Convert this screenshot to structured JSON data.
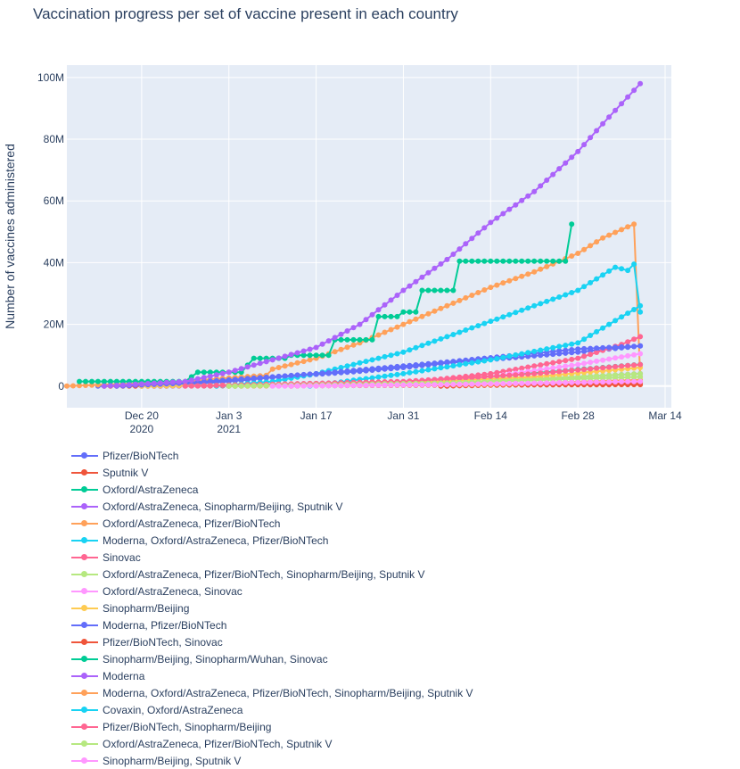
{
  "chart_data": {
    "type": "line",
    "title": "Vaccination progress per set of vaccine present in each country",
    "ylabel": "Number of vaccines administered",
    "xlabel": "",
    "x_range": [
      "2020-12-08",
      "2021-03-15"
    ],
    "ylim": [
      -7000000,
      104000000
    ],
    "y_ticks": [
      {
        "value": 0,
        "label": "0"
      },
      {
        "value": 20000000,
        "label": "20M"
      },
      {
        "value": 40000000,
        "label": "40M"
      },
      {
        "value": 60000000,
        "label": "60M"
      },
      {
        "value": 80000000,
        "label": "80M"
      },
      {
        "value": 100000000,
        "label": "100M"
      }
    ],
    "x_ticks": [
      {
        "date": "2020-12-20",
        "label": "Dec 20",
        "sublabel": "2020"
      },
      {
        "date": "2021-01-03",
        "label": "Jan 3",
        "sublabel": "2021"
      },
      {
        "date": "2021-01-17",
        "label": "Jan 17",
        "sublabel": ""
      },
      {
        "date": "2021-01-31",
        "label": "Jan 31",
        "sublabel": ""
      },
      {
        "date": "2021-02-14",
        "label": "Feb 14",
        "sublabel": ""
      },
      {
        "date": "2021-02-28",
        "label": "Feb 28",
        "sublabel": ""
      },
      {
        "date": "2021-03-14",
        "label": "Mar 14",
        "sublabel": ""
      }
    ],
    "grid": true,
    "legend_position": "bottom",
    "series": [
      {
        "name": "Pfizer/BioNTech",
        "color": "#636efa",
        "points": [
          [
            "2020-12-13",
            0
          ],
          [
            "2020-12-27",
            500000
          ],
          [
            "2021-01-03",
            1500000
          ],
          [
            "2021-01-10",
            2800000
          ],
          [
            "2021-01-17",
            3800000
          ],
          [
            "2021-01-24",
            4800000
          ],
          [
            "2021-01-31",
            6000000
          ],
          [
            "2021-02-07",
            7500000
          ],
          [
            "2021-02-14",
            8600000
          ],
          [
            "2021-02-21",
            9800000
          ],
          [
            "2021-02-28",
            11000000
          ],
          [
            "2021-03-07",
            12400000
          ],
          [
            "2021-03-10",
            13000000
          ]
        ]
      },
      {
        "name": "Sputnik V",
        "color": "#EF553B",
        "points": [
          [
            "2020-12-14",
            0
          ],
          [
            "2021-01-10",
            100000
          ],
          [
            "2021-02-07",
            300000
          ],
          [
            "2021-03-10",
            500000
          ]
        ]
      },
      {
        "name": "Oxford/AstraZeneca",
        "color": "#00cc96",
        "points": [
          [
            "2021-01-03",
            0
          ],
          [
            "2021-01-24",
            500000
          ],
          [
            "2021-02-14",
            3000000
          ],
          [
            "2021-03-10",
            7000000
          ]
        ]
      },
      {
        "name": "Oxford/AstraZeneca, Sinopharm/Beijing, Sputnik V",
        "color": "#ab63fa",
        "points": [
          [
            "2020-12-20",
            0
          ],
          [
            "2021-01-31",
            500000
          ],
          [
            "2021-02-14",
            1500000
          ],
          [
            "2021-03-10",
            4000000
          ]
        ]
      },
      {
        "name": "Oxford/AstraZeneca, Pfizer/BioNTech",
        "color": "#FFA15A",
        "points": [
          [
            "2020-12-08",
            0
          ],
          [
            "2020-12-27",
            1500000
          ],
          [
            "2021-01-04",
            2800000
          ],
          [
            "2021-01-09",
            3500000
          ],
          [
            "2021-01-10",
            5500000
          ],
          [
            "2021-01-13",
            7000000
          ],
          [
            "2021-01-17",
            9000000
          ],
          [
            "2021-01-24",
            14000000
          ],
          [
            "2021-01-31",
            20000000
          ],
          [
            "2021-02-07",
            26000000
          ],
          [
            "2021-02-14",
            32000000
          ],
          [
            "2021-02-21",
            37000000
          ],
          [
            "2021-02-28",
            43000000
          ],
          [
            "2021-03-04",
            48000000
          ],
          [
            "2021-03-09",
            52500000
          ],
          [
            "2021-03-10",
            3000000
          ]
        ]
      },
      {
        "name": "Moderna, Oxford/AstraZeneca, Pfizer/BioNTech",
        "color": "#19d3f3",
        "points": [
          [
            "2021-01-01",
            0
          ],
          [
            "2021-01-10",
            1500000
          ],
          [
            "2021-01-17",
            4000000
          ],
          [
            "2021-01-24",
            7500000
          ],
          [
            "2021-01-31",
            11000000
          ],
          [
            "2021-02-07",
            16000000
          ],
          [
            "2021-02-14",
            21000000
          ],
          [
            "2021-02-21",
            26000000
          ],
          [
            "2021-02-28",
            31000000
          ],
          [
            "2021-03-04",
            36000000
          ],
          [
            "2021-03-06",
            38500000
          ],
          [
            "2021-03-08",
            37500000
          ],
          [
            "2021-03-09",
            39500000
          ],
          [
            "2021-03-10",
            24000000
          ]
        ]
      },
      {
        "name": "Sinovac",
        "color": "#FF6692",
        "points": [
          [
            "2021-01-13",
            0
          ],
          [
            "2021-01-31",
            1000000
          ],
          [
            "2021-02-14",
            4000000
          ],
          [
            "2021-02-28",
            9000000
          ],
          [
            "2021-03-07",
            13500000
          ],
          [
            "2021-03-10",
            16000000
          ]
        ]
      },
      {
        "name": "Oxford/AstraZeneca, Pfizer/BioNTech, Sinopharm/Beijing, Sputnik V",
        "color": "#B6E880",
        "points": [
          [
            "2021-01-03",
            0
          ],
          [
            "2021-02-07",
            1000000
          ],
          [
            "2021-03-10",
            4000000
          ]
        ]
      },
      {
        "name": "Oxford/AstraZeneca, Sinovac",
        "color": "#FF97FF",
        "points": [
          [
            "2021-01-17",
            0
          ],
          [
            "2021-02-14",
            3000000
          ],
          [
            "2021-02-28",
            7000000
          ],
          [
            "2021-03-10",
            10500000
          ]
        ]
      },
      {
        "name": "Sinopharm/Beijing",
        "color": "#FECB52",
        "points": [
          [
            "2020-12-20",
            0
          ],
          [
            "2021-01-31",
            1000000
          ],
          [
            "2021-02-21",
            3000000
          ],
          [
            "2021-03-10",
            6000000
          ]
        ]
      },
      {
        "name": "Moderna, Pfizer/BioNTech",
        "color": "#636efa",
        "points": [
          [
            "2020-12-16",
            0
          ],
          [
            "2020-12-27",
            1000000
          ],
          [
            "2021-01-03",
            2000000
          ],
          [
            "2021-01-17",
            4000000
          ],
          [
            "2021-01-31",
            6500000
          ],
          [
            "2021-02-07",
            7800000
          ],
          [
            "2021-02-14",
            9200000
          ],
          [
            "2021-02-28",
            12000000
          ],
          [
            "2021-03-10",
            13000000
          ]
        ]
      },
      {
        "name": "Pfizer/BioNTech, Sinovac",
        "color": "#EF553B",
        "points": [
          [
            "2021-02-06",
            0
          ],
          [
            "2021-02-20",
            500000
          ],
          [
            "2021-03-10",
            1000000
          ]
        ]
      },
      {
        "name": "Sinopharm/Beijing, Sinopharm/Wuhan, Sinovac",
        "color": "#00cc96",
        "points": [
          [
            "2020-12-10",
            1500000
          ],
          [
            "2020-12-27",
            1500000
          ],
          [
            "2020-12-29",
            4500000
          ],
          [
            "2021-01-05",
            4500000
          ],
          [
            "2021-01-07",
            9000000
          ],
          [
            "2021-01-12",
            9000000
          ],
          [
            "2021-01-13",
            10000000
          ],
          [
            "2021-01-19",
            10000000
          ],
          [
            "2021-01-20",
            15000000
          ],
          [
            "2021-01-26",
            15000000
          ],
          [
            "2021-01-27",
            22500000
          ],
          [
            "2021-01-30",
            22500000
          ],
          [
            "2021-01-31",
            24000000
          ],
          [
            "2021-02-02",
            24000000
          ],
          [
            "2021-02-03",
            31000000
          ],
          [
            "2021-02-08",
            31000000
          ],
          [
            "2021-02-09",
            40500000
          ],
          [
            "2021-02-26",
            40500000
          ],
          [
            "2021-02-27",
            52500000
          ]
        ]
      },
      {
        "name": "Moderna",
        "color": "#ab63fa",
        "points": [
          [
            "2020-12-14",
            0
          ],
          [
            "2020-12-27",
            1500000
          ],
          [
            "2021-01-03",
            4500000
          ],
          [
            "2021-01-10",
            8500000
          ],
          [
            "2021-01-17",
            12500000
          ],
          [
            "2021-01-24",
            20000000
          ],
          [
            "2021-01-31",
            31000000
          ],
          [
            "2021-02-07",
            41000000
          ],
          [
            "2021-02-14",
            53000000
          ],
          [
            "2021-02-21",
            63000000
          ],
          [
            "2021-02-28",
            76000000
          ],
          [
            "2021-03-04",
            85000000
          ],
          [
            "2021-03-10",
            98000000
          ]
        ]
      },
      {
        "name": "Moderna, Oxford/AstraZeneca, Pfizer/BioNTech, Sinopharm/Beijing, Sputnik V",
        "color": "#FFA15A",
        "points": [
          [
            "2021-01-03",
            0
          ],
          [
            "2021-02-14",
            500000
          ],
          [
            "2021-03-10",
            2000000
          ]
        ]
      },
      {
        "name": "Covaxin, Oxford/AstraZeneca",
        "color": "#19d3f3",
        "points": [
          [
            "2021-01-16",
            0
          ],
          [
            "2021-01-31",
            4000000
          ],
          [
            "2021-02-14",
            8500000
          ],
          [
            "2021-02-28",
            14000000
          ],
          [
            "2021-03-10",
            26000000
          ]
        ]
      },
      {
        "name": "Pfizer/BioNTech, Sinopharm/Beijing",
        "color": "#FF6692",
        "points": [
          [
            "2020-12-27",
            0
          ],
          [
            "2021-01-31",
            1500000
          ],
          [
            "2021-02-21",
            4000000
          ],
          [
            "2021-03-10",
            7000000
          ]
        ]
      },
      {
        "name": "Oxford/AstraZeneca, Pfizer/BioNTech, Sputnik V",
        "color": "#B6E880",
        "points": [
          [
            "2021-01-03",
            0
          ],
          [
            "2021-02-07",
            1000000
          ],
          [
            "2021-03-10",
            3000000
          ]
        ]
      },
      {
        "name": "Sinopharm/Beijing, Sputnik V",
        "color": "#FF97FF",
        "points": [
          [
            "2021-01-10",
            0
          ],
          [
            "2021-02-07",
            500000
          ],
          [
            "2021-03-10",
            1500000
          ]
        ]
      }
    ]
  }
}
